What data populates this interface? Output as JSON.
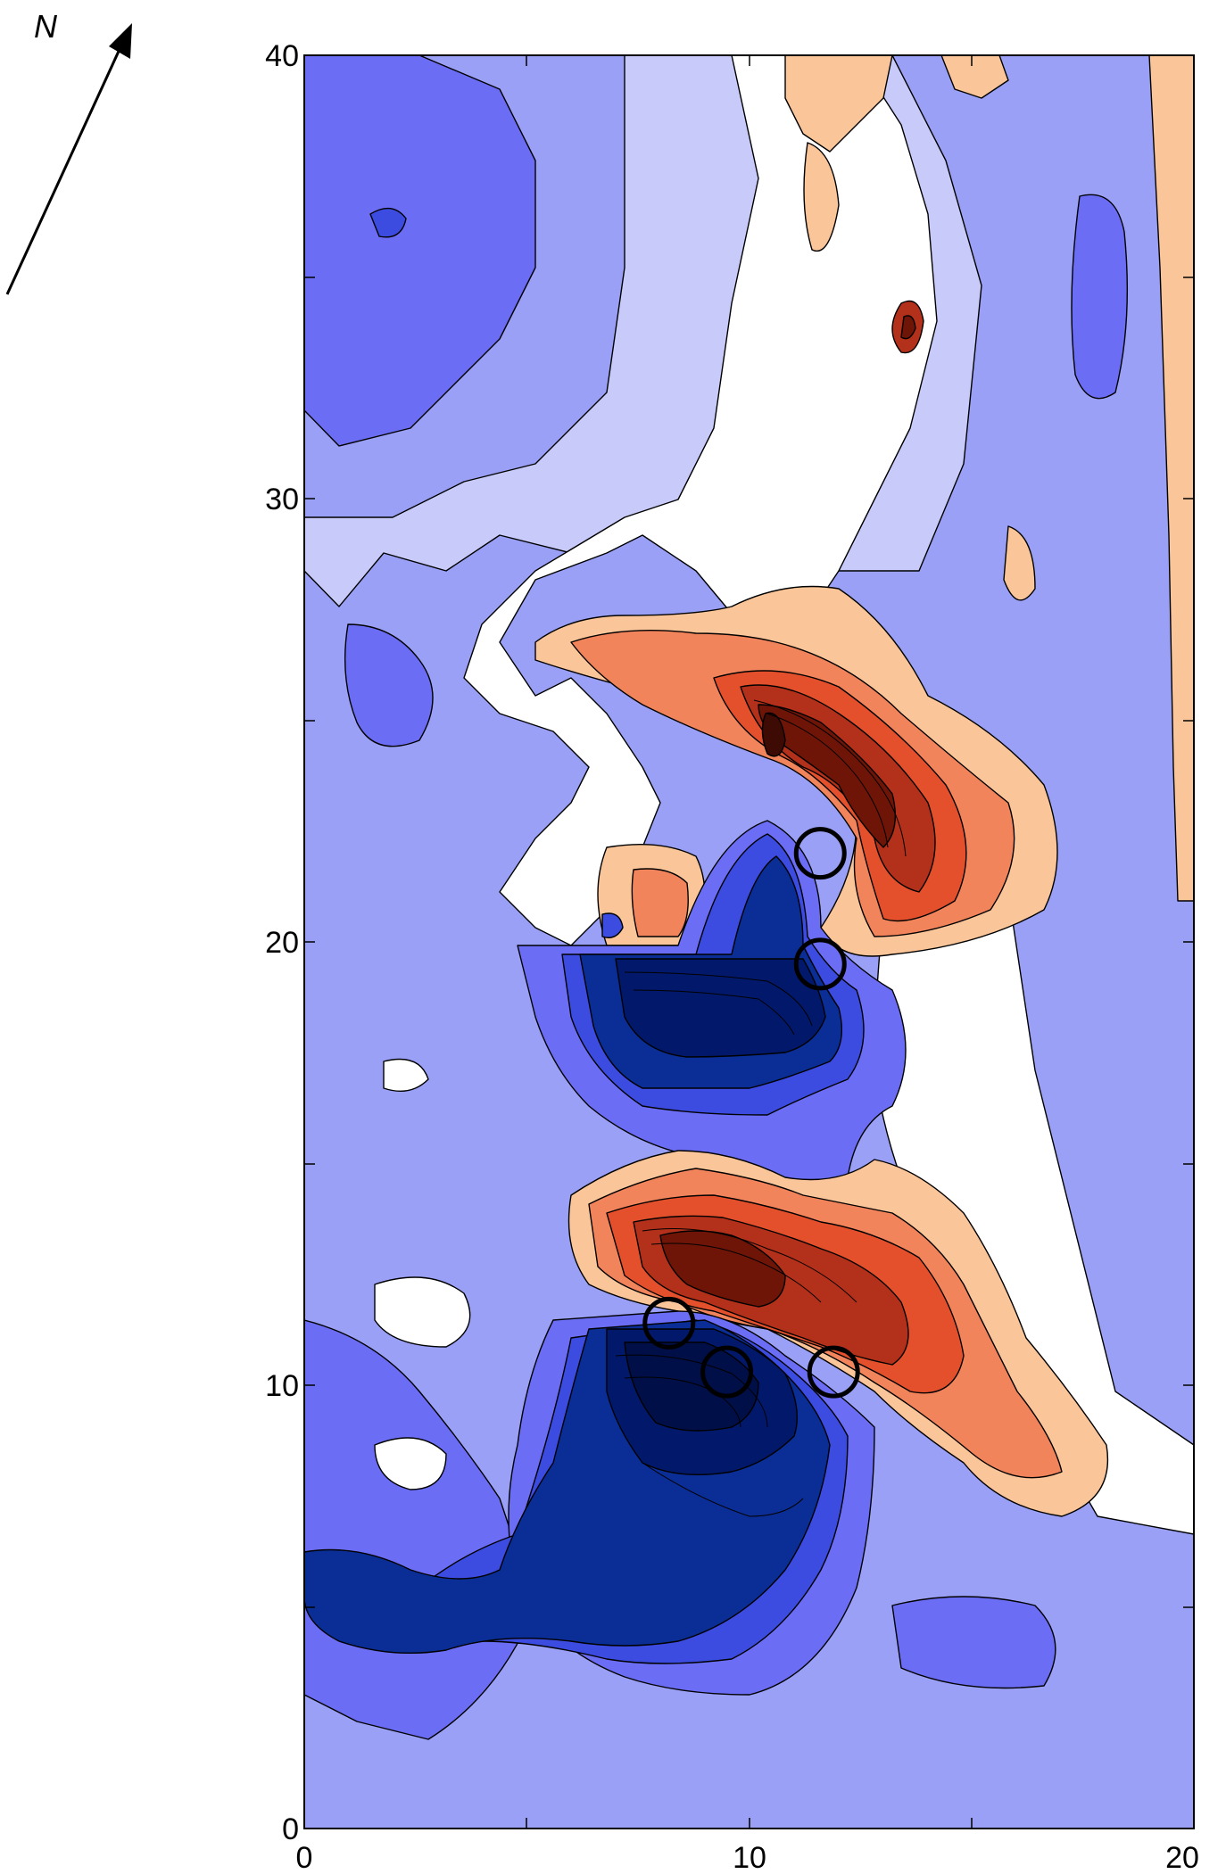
{
  "map": {
    "type": "magnetic anomaly contour map",
    "north_arrow_label": "N",
    "x_ticks": [
      "0",
      "10",
      "20"
    ],
    "y_ticks": [
      "0",
      "10",
      "20",
      "30",
      "40"
    ],
    "x_range": [
      0,
      20
    ],
    "y_range": [
      0,
      40
    ],
    "palette": {
      "deep_blue": "#02196b",
      "dark_blue": "#0a2e96",
      "mid_blue": "#3c4be0",
      "blue": "#6b6ef5",
      "light_blue": "#9aa0f6",
      "pale_blue": "#c8cbfa",
      "neutral": "#ffffff",
      "pale_orange": "#fbc59a",
      "orange": "#f2845c",
      "red_orange": "#e4502c",
      "red": "#b3301a",
      "dark_red": "#6e1508",
      "contour_line": "#000000"
    },
    "markers": [
      {
        "x": 11.6,
        "y": 22.0
      },
      {
        "x": 11.6,
        "y": 19.5
      },
      {
        "x": 8.2,
        "y": 11.4
      },
      {
        "x": 9.5,
        "y": 10.3
      },
      {
        "x": 11.9,
        "y": 10.3
      }
    ]
  }
}
